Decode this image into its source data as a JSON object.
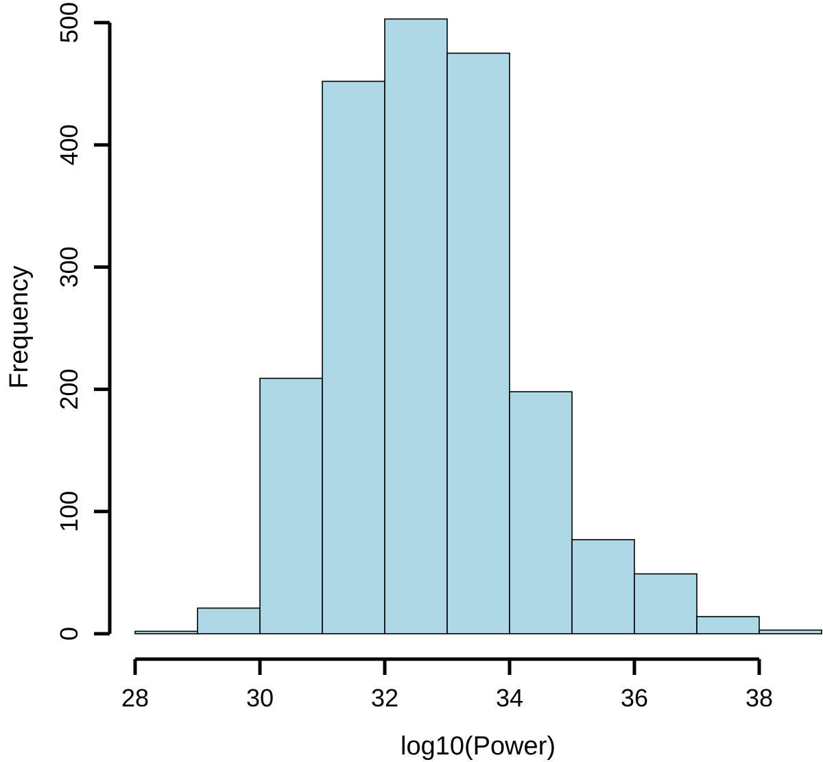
{
  "chart_data": {
    "type": "bar",
    "subtype": "histogram",
    "title": "",
    "xlabel": "log10(Power)",
    "ylabel": "Frequency",
    "bin_edges": [
      28,
      29,
      30,
      31,
      32,
      33,
      34,
      35,
      36,
      37,
      38,
      39
    ],
    "values": [
      2,
      21,
      209,
      452,
      503,
      475,
      198,
      77,
      49,
      14,
      3
    ],
    "xlim": [
      28,
      39
    ],
    "ylim": [
      0,
      500
    ],
    "x_ticks": [
      "28",
      "30",
      "32",
      "34",
      "36",
      "38"
    ],
    "y_ticks": [
      "0",
      "100",
      "200",
      "300",
      "400",
      "500"
    ],
    "bar_color": "#add8e6",
    "grid": false
  }
}
